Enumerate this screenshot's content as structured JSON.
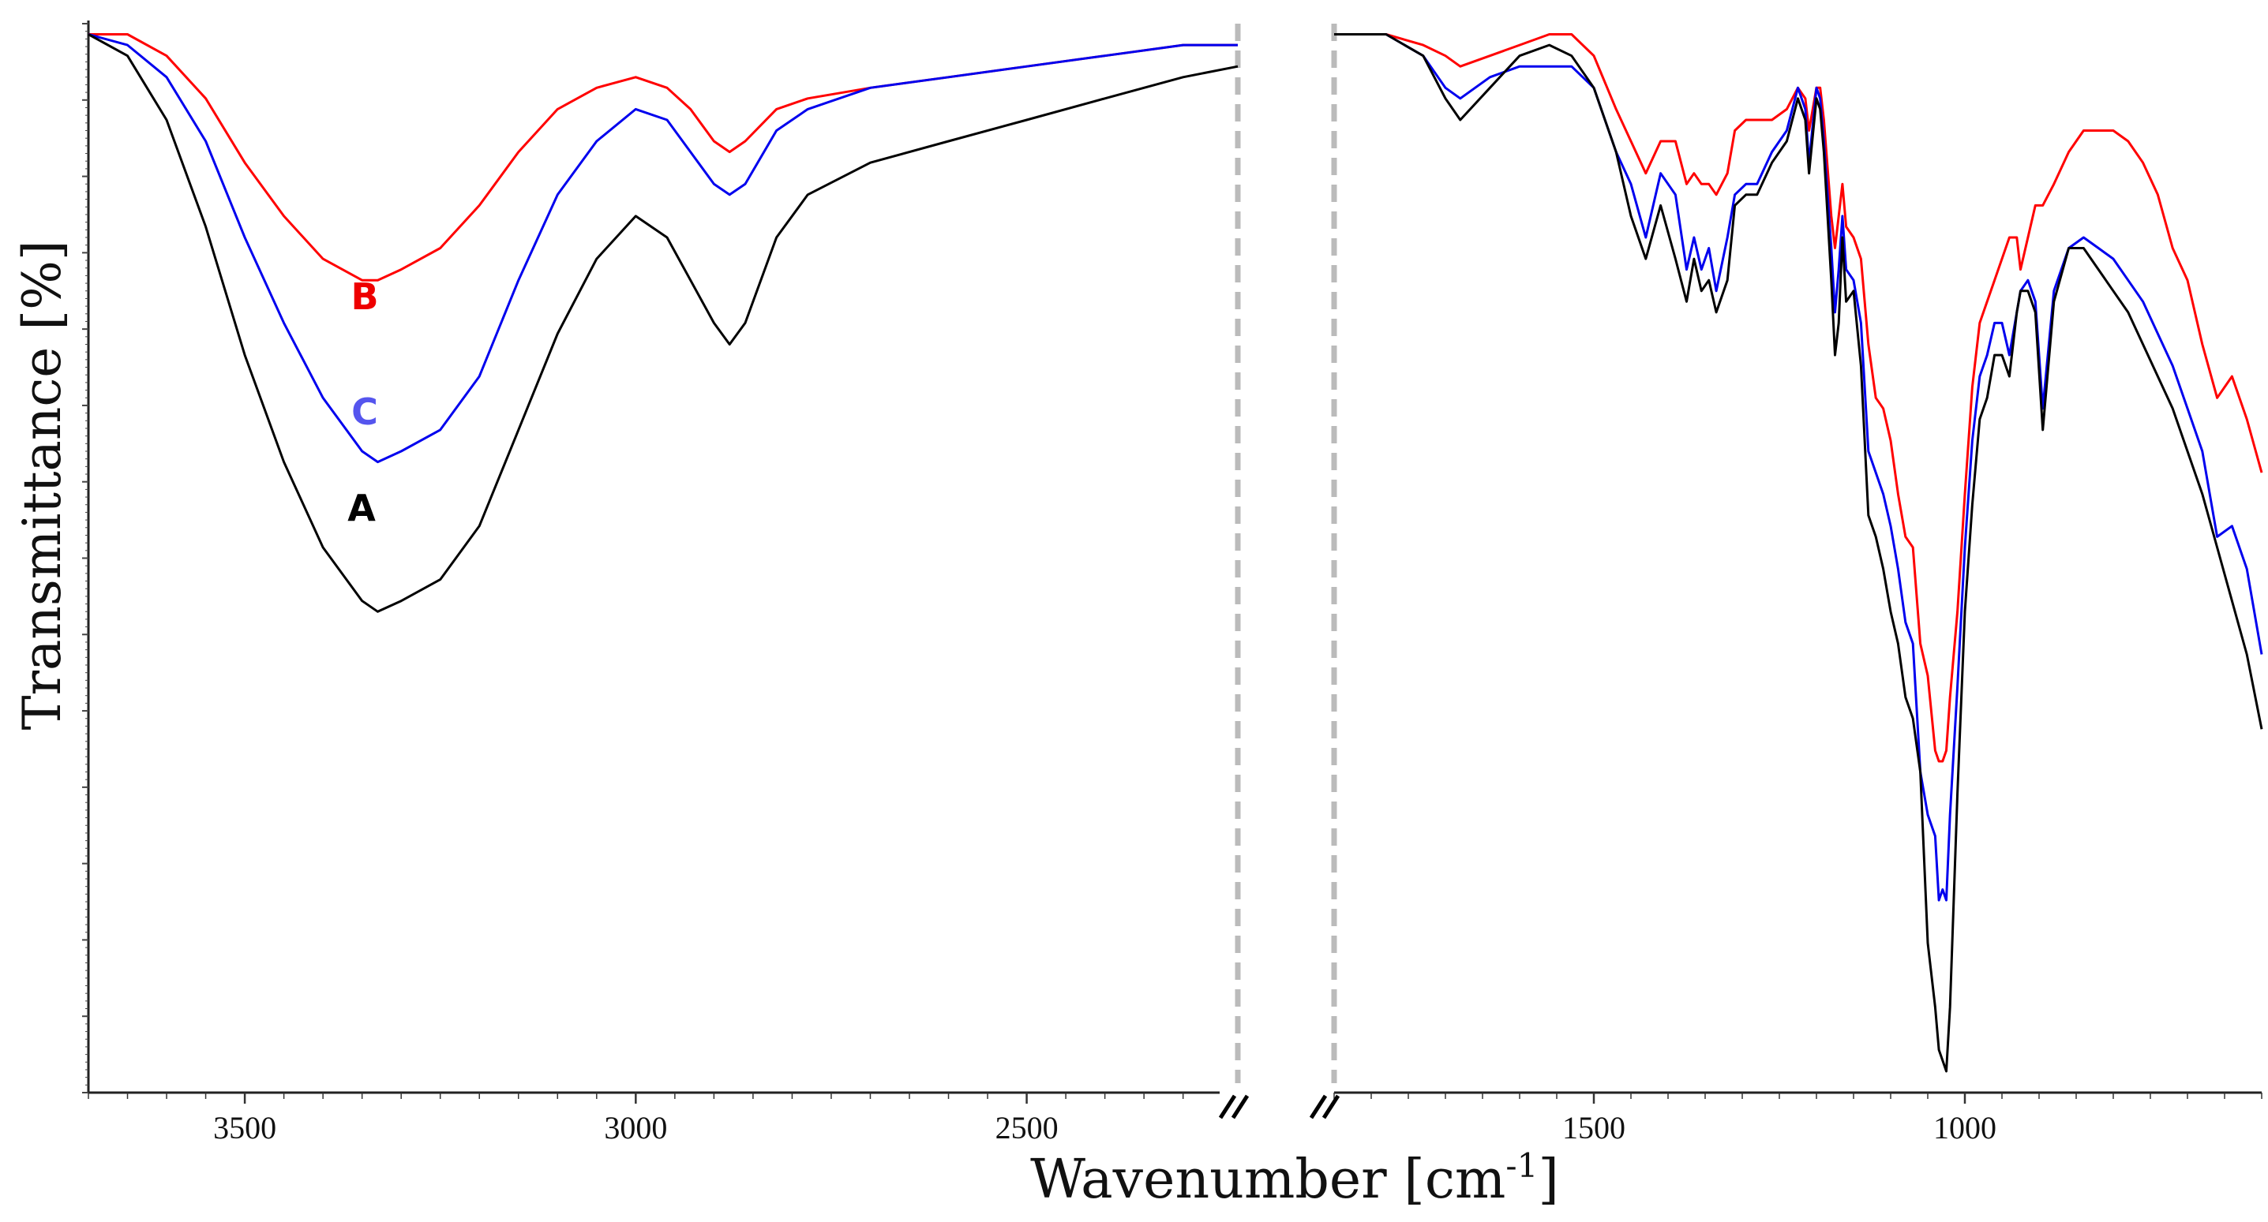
{
  "chart_data": {
    "type": "line",
    "title": "",
    "xlabel": "Wavenumber [cm",
    "xlabel_superscript": "-1",
    "xlabel_suffix": "]",
    "ylabel": "Transmittance [%]",
    "x_reversed": true,
    "axis_break": "//",
    "panels": [
      {
        "name": "left",
        "xlim": [
          3700,
          2230
        ],
        "ticks": [
          3500,
          3000,
          2500
        ],
        "tick_labels": [
          "3500",
          "3000",
          "2500"
        ]
      },
      {
        "name": "right",
        "xlim": [
          1850,
          600
        ],
        "ticks": [
          1500,
          1000
        ],
        "tick_labels": [
          "1500",
          "1000"
        ]
      }
    ],
    "ylim": [
      0,
      100
    ],
    "series": [
      {
        "name": "A",
        "color": "#000000",
        "left": {
          "x": [
            3700,
            3650,
            3600,
            3550,
            3500,
            3450,
            3400,
            3350,
            3330,
            3300,
            3250,
            3200,
            3150,
            3100,
            3050,
            3000,
            2960,
            2930,
            2900,
            2880,
            2860,
            2820,
            2780,
            2700,
            2600,
            2500,
            2400,
            2300,
            2230
          ],
          "y": [
            99,
            97,
            91,
            81,
            69,
            59,
            51,
            46,
            45,
            46,
            48,
            53,
            62,
            71,
            78,
            82,
            80,
            76,
            72,
            70,
            72,
            80,
            84,
            87,
            89,
            91,
            93,
            95,
            96
          ]
        },
        "right": {
          "x": [
            1850,
            1780,
            1730,
            1700,
            1680,
            1640,
            1600,
            1560,
            1530,
            1500,
            1470,
            1450,
            1430,
            1410,
            1390,
            1375,
            1365,
            1355,
            1345,
            1335,
            1320,
            1310,
            1295,
            1280,
            1260,
            1240,
            1225,
            1215,
            1210,
            1200,
            1195,
            1190,
            1180,
            1175,
            1170,
            1165,
            1160,
            1150,
            1140,
            1130,
            1120,
            1110,
            1100,
            1090,
            1080,
            1070,
            1060,
            1050,
            1040,
            1035,
            1030,
            1025,
            1020,
            1010,
            1000,
            990,
            980,
            970,
            960,
            950,
            940,
            930,
            925,
            915,
            905,
            895,
            880,
            860,
            840,
            820,
            800,
            780,
            760,
            740,
            720,
            700,
            680,
            660,
            640,
            620,
            600
          ],
          "y": [
            99,
            99,
            97,
            93,
            91,
            94,
            97,
            98,
            97,
            94,
            88,
            82,
            78,
            83,
            78,
            74,
            78,
            75,
            76,
            73,
            76,
            83,
            84,
            84,
            87,
            89,
            93,
            91,
            86,
            93,
            92,
            88,
            76,
            69,
            72,
            80,
            74,
            75,
            68,
            54,
            52,
            49,
            45,
            42,
            37,
            35,
            30,
            14,
            8,
            4,
            3,
            2,
            8,
            28,
            45,
            55,
            63,
            65,
            69,
            69,
            67,
            73,
            75,
            75,
            73,
            62,
            74,
            79,
            79,
            77,
            75,
            73,
            70,
            67,
            64,
            60,
            56,
            51,
            46,
            41,
            34
          ]
        }
      },
      {
        "name": "B",
        "color": "#ff0000",
        "left": {
          "x": [
            3700,
            3650,
            3600,
            3550,
            3500,
            3450,
            3400,
            3350,
            3330,
            3300,
            3250,
            3200,
            3150,
            3100,
            3050,
            3000,
            2960,
            2930,
            2900,
            2880,
            2860,
            2820,
            2780,
            2700,
            2600,
            2500,
            2400,
            2300,
            2230
          ],
          "y": [
            99,
            99,
            97,
            93,
            87,
            82,
            78,
            76,
            76,
            77,
            79,
            83,
            88,
            92,
            94,
            95,
            94,
            92,
            89,
            88,
            89,
            92,
            93,
            94,
            95,
            96,
            97,
            98,
            98
          ]
        },
        "right": {
          "x": [
            1850,
            1780,
            1730,
            1700,
            1680,
            1640,
            1600,
            1560,
            1530,
            1500,
            1470,
            1450,
            1430,
            1410,
            1390,
            1375,
            1365,
            1355,
            1345,
            1335,
            1320,
            1310,
            1295,
            1280,
            1260,
            1240,
            1225,
            1215,
            1210,
            1200,
            1195,
            1190,
            1180,
            1175,
            1170,
            1165,
            1160,
            1150,
            1140,
            1130,
            1120,
            1110,
            1100,
            1090,
            1080,
            1070,
            1060,
            1050,
            1040,
            1035,
            1030,
            1025,
            1020,
            1010,
            1000,
            990,
            980,
            970,
            960,
            950,
            940,
            930,
            925,
            915,
            905,
            895,
            880,
            860,
            840,
            820,
            800,
            780,
            760,
            740,
            720,
            700,
            680,
            660,
            640,
            620,
            600
          ],
          "y": [
            99,
            99,
            98,
            97,
            96,
            97,
            98,
            99,
            99,
            97,
            92,
            89,
            86,
            89,
            89,
            85,
            86,
            85,
            85,
            84,
            86,
            90,
            91,
            91,
            91,
            92,
            94,
            93,
            90,
            94,
            94,
            91,
            82,
            79,
            82,
            85,
            81,
            80,
            78,
            70,
            65,
            64,
            61,
            56,
            52,
            51,
            42,
            39,
            32,
            31,
            31,
            32,
            37,
            45,
            56,
            66,
            72,
            74,
            76,
            78,
            80,
            80,
            77,
            80,
            83,
            83,
            85,
            88,
            90,
            90,
            90,
            89,
            87,
            84,
            79,
            76,
            70,
            65,
            67,
            63,
            58
          ]
        }
      },
      {
        "name": "C",
        "color": "#0000ee",
        "left": {
          "x": [
            3700,
            3650,
            3600,
            3550,
            3500,
            3450,
            3400,
            3350,
            3330,
            3300,
            3250,
            3200,
            3150,
            3100,
            3050,
            3000,
            2960,
            2930,
            2900,
            2880,
            2860,
            2820,
            2780,
            2700,
            2600,
            2500,
            2400,
            2300,
            2230
          ],
          "y": [
            99,
            98,
            95,
            89,
            80,
            72,
            65,
            60,
            59,
            60,
            62,
            67,
            76,
            84,
            89,
            92,
            91,
            88,
            85,
            84,
            85,
            90,
            92,
            94,
            95,
            96,
            97,
            98,
            98
          ]
        },
        "right": {
          "x": [
            1850,
            1780,
            1730,
            1700,
            1680,
            1640,
            1600,
            1560,
            1530,
            1500,
            1470,
            1450,
            1430,
            1410,
            1390,
            1375,
            1365,
            1355,
            1345,
            1335,
            1320,
            1310,
            1295,
            1280,
            1260,
            1240,
            1225,
            1215,
            1210,
            1200,
            1195,
            1190,
            1180,
            1175,
            1170,
            1165,
            1160,
            1150,
            1140,
            1130,
            1120,
            1110,
            1100,
            1090,
            1080,
            1070,
            1060,
            1050,
            1040,
            1035,
            1030,
            1025,
            1020,
            1010,
            1000,
            990,
            980,
            970,
            960,
            950,
            940,
            930,
            925,
            915,
            905,
            895,
            880,
            860,
            840,
            820,
            800,
            780,
            760,
            740,
            720,
            700,
            680,
            660,
            640,
            620,
            600
          ],
          "y": [
            99,
            99,
            97,
            94,
            93,
            95,
            96,
            96,
            96,
            94,
            88,
            85,
            80,
            86,
            84,
            77,
            80,
            77,
            79,
            75,
            80,
            84,
            85,
            85,
            88,
            90,
            94,
            92,
            87,
            94,
            93,
            89,
            79,
            73,
            77,
            82,
            77,
            76,
            72,
            60,
            58,
            56,
            53,
            49,
            44,
            42,
            30,
            26,
            24,
            18,
            19,
            18,
            26,
            38,
            51,
            61,
            67,
            69,
            72,
            72,
            69,
            73,
            75,
            76,
            74,
            64,
            75,
            79,
            80,
            79,
            78,
            76,
            74,
            71,
            68,
            64,
            60,
            52,
            53,
            49,
            41
          ]
        }
      }
    ],
    "annotations": [
      {
        "text": "B",
        "color": "#ee0000"
      },
      {
        "text": "C",
        "color": "#5555ee"
      },
      {
        "text": "A",
        "color": "#000000"
      }
    ]
  }
}
